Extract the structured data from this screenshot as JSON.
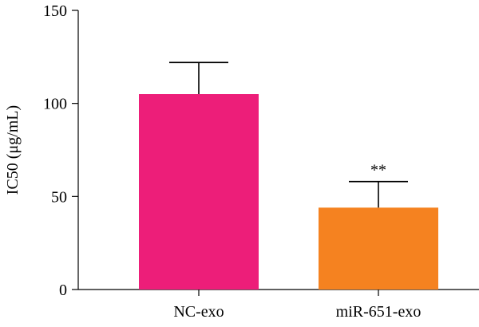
{
  "chart_data": {
    "type": "bar",
    "categories": [
      "NC-exo",
      "miR-651-exo"
    ],
    "values": [
      105,
      44
    ],
    "errors": [
      17,
      14
    ],
    "colors": [
      "#ed1e79",
      "#f58220"
    ],
    "annotations": [
      "",
      "**"
    ],
    "ylabel": "IC50 (μg/mL)",
    "ylim": [
      0,
      150
    ],
    "yticks": [
      0,
      50,
      100,
      150
    ],
    "grid": false,
    "legend": "none"
  }
}
